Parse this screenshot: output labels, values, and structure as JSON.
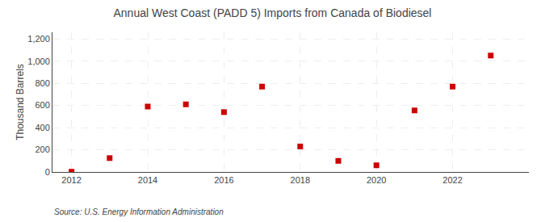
{
  "chart_data": {
    "type": "scatter",
    "title": "Annual West Coast (PADD 5) Imports from Canada of Biodiesel",
    "ylabel": "Thousand Barrels",
    "annotations": [
      "Source: U.S. Energy Information Administration"
    ],
    "x": [
      2012,
      2013,
      2014,
      2015,
      2016,
      2017,
      2018,
      2019,
      2020,
      2021,
      2022,
      2023
    ],
    "values": [
      2,
      125,
      590,
      610,
      540,
      770,
      230,
      100,
      60,
      555,
      770,
      1050
    ],
    "color": "#cc0000",
    "marker": "square",
    "xlim": [
      2011.5,
      2024.0
    ],
    "ylim": [
      0,
      1260
    ],
    "xticks": [
      2012,
      2014,
      2016,
      2018,
      2020,
      2022
    ],
    "yticks": [
      0,
      200,
      400,
      600,
      {
        "value": 1000,
        "label": "1,000"
      },
      {
        "value": 1200,
        "label": "1,200"
      },
      800
    ],
    "grid": true
  }
}
